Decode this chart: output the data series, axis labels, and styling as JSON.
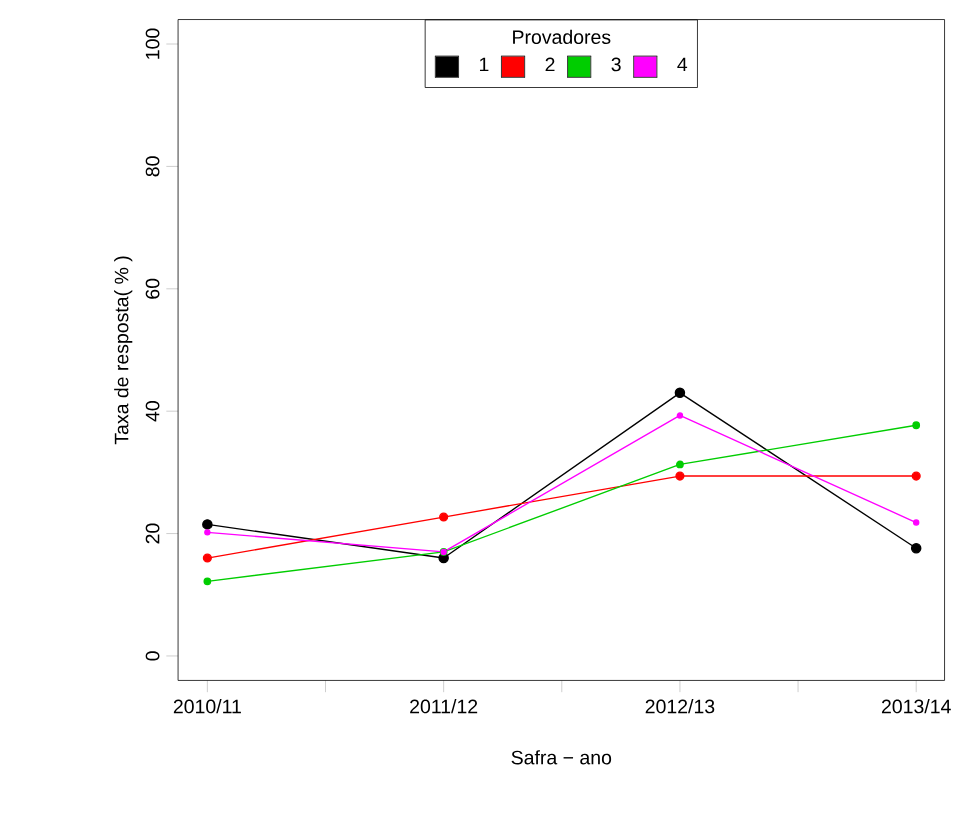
{
  "chart_data": {
    "type": "line",
    "xlabel": "Safra − ano",
    "ylabel": "Taxa de resposta( % )",
    "legend_title": "Provadores",
    "legend": "top",
    "marker": "circle",
    "line_style": "solid",
    "categories": [
      "2010/11",
      "2011/12",
      "2012/13",
      "2013/14"
    ],
    "ylim": [
      -4,
      104
    ],
    "yticks": [
      0,
      20,
      40,
      60,
      80,
      100
    ],
    "series": [
      {
        "name": "1",
        "color": "#000000",
        "values": [
          21.5,
          16,
          43,
          17.6
        ]
      },
      {
        "name": "2",
        "color": "#ff0000",
        "values": [
          16,
          22.7,
          29.4,
          29.4
        ]
      },
      {
        "name": "3",
        "color": "#00cd00",
        "values": [
          12.2,
          17,
          31.3,
          37.7
        ]
      },
      {
        "name": "4",
        "color": "#ff00ff",
        "values": [
          20.2,
          17,
          39.3,
          21.8
        ]
      }
    ]
  }
}
